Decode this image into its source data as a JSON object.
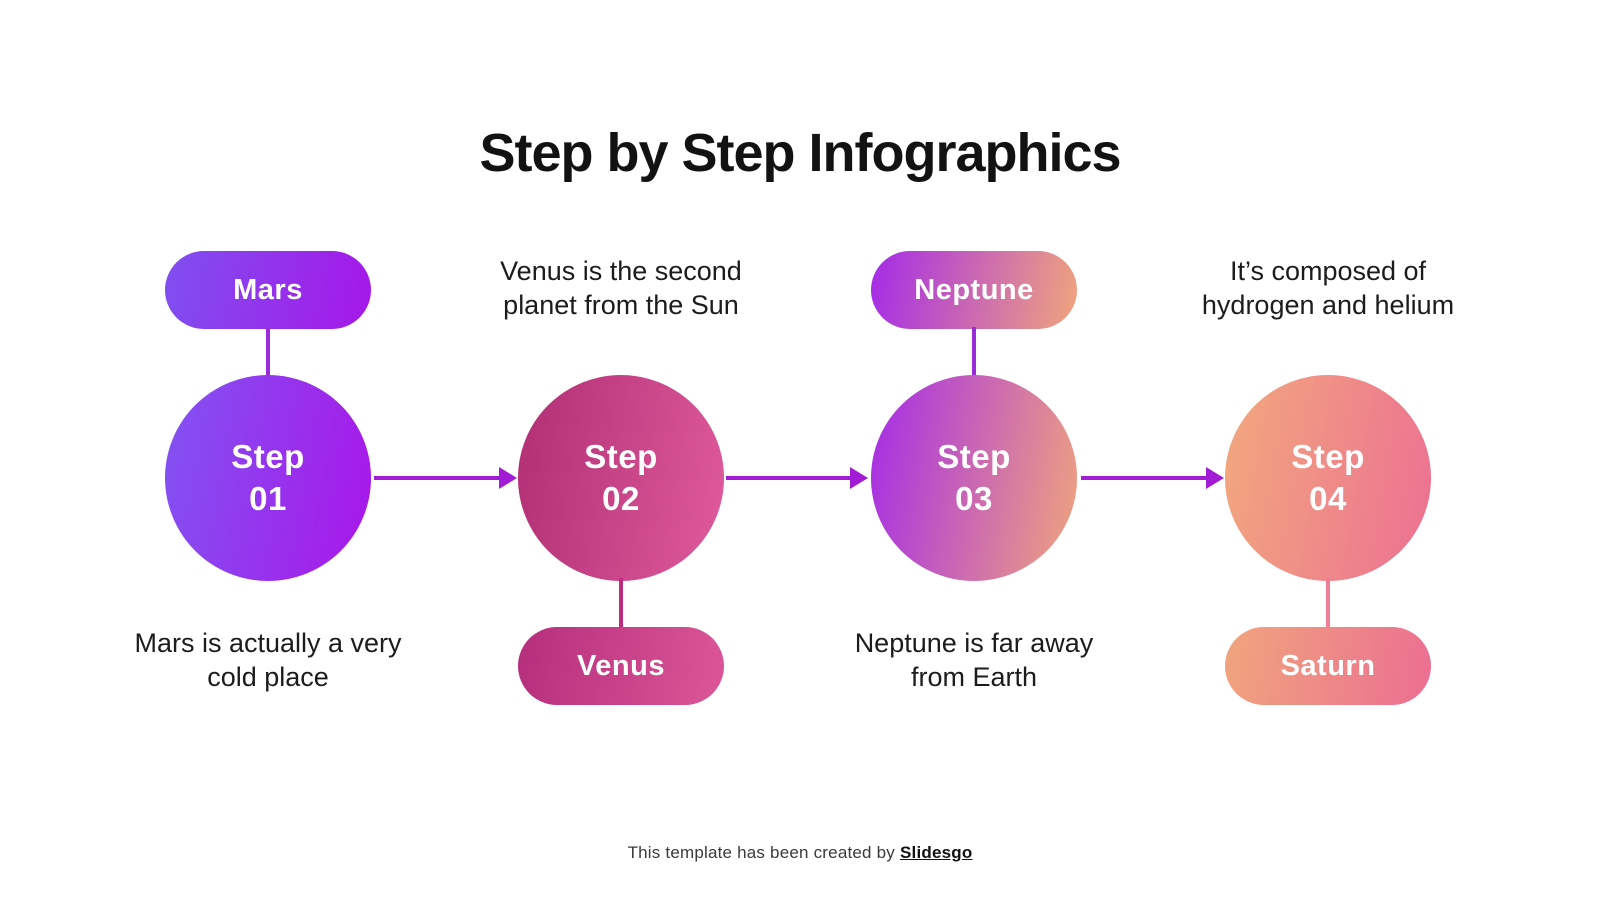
{
  "slide": {
    "title": "Step by Step Infographics",
    "footer_text": "This template has been created by",
    "footer_brand": "Slidesgo"
  },
  "colors": {
    "arrow": "#A21CD6",
    "title_text": "#121212",
    "description_text": "#1c1c1c",
    "background": "#ffffff"
  },
  "steps": [
    {
      "label": "Step",
      "number": "01",
      "planet": "Mars",
      "planet_position": "above",
      "description_lines": [
        "Mars is actually a very",
        "cold place"
      ],
      "circle_gradient": [
        "#8154F2",
        "#A916E9"
      ],
      "pill_gradient": [
        "#7F50F0",
        "#A617E8"
      ],
      "connector_color": "#9C2BD8"
    },
    {
      "label": "Step",
      "number": "02",
      "planet": "Venus",
      "planet_position": "below",
      "description_lines": [
        "Venus is the second",
        "planet from the Sun"
      ],
      "circle_gradient": [
        "#B12E74",
        "#DF5B9C"
      ],
      "pill_gradient": [
        "#B52E7C",
        "#DC5697"
      ],
      "connector_color": "#BE2C80"
    },
    {
      "label": "Step",
      "number": "03",
      "planet": "Neptune",
      "planet_position": "above",
      "description_lines": [
        "Neptune is far away",
        "from Earth"
      ],
      "circle_gradient": [
        "#A42BE8",
        "#F0A57D"
      ],
      "pill_gradient": [
        "#A42BE8",
        "#F0A57D"
      ],
      "connector_color": "#9A2BD8"
    },
    {
      "label": "Step",
      "number": "04",
      "planet": "Saturn",
      "planet_position": "below",
      "description_lines": [
        "It’s composed of",
        "hydrogen and helium"
      ],
      "circle_gradient": [
        "#F2A87D",
        "#EC7093"
      ],
      "pill_gradient": [
        "#F0A57D",
        "#EB6E92"
      ],
      "connector_color": "#EC7E96"
    }
  ]
}
